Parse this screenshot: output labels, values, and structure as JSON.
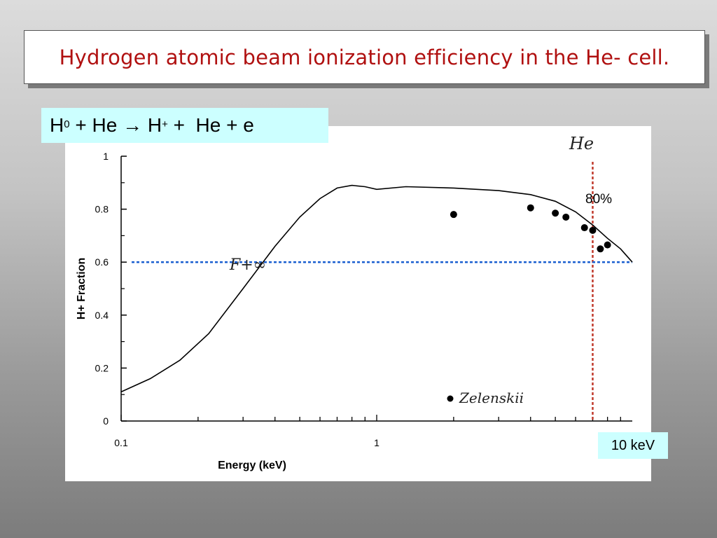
{
  "slide": {
    "title": "Hydrogen atomic beam ionization efficiency in the He- cell."
  },
  "reaction": {
    "h": "H",
    "h_sup": "0",
    "plus_he": " + He ",
    "arrow": "→",
    "h2": " H",
    "h2_sup": "+",
    "rest": " +  He + e"
  },
  "annotations": {
    "he_label": "He",
    "percent_label": "80%",
    "kev_label": "10 keV",
    "curve_label": "F+∞",
    "legend_label": "Zelenskii"
  },
  "colors": {
    "title": "#b01010",
    "vertical_line": "#c0392b",
    "horizontal_line": "#1a5fd0",
    "highlight_box": "#ccffff"
  },
  "chart_data": {
    "type": "line",
    "title": "",
    "xlabel": "Energy (keV)",
    "ylabel": "H+ Fraction",
    "xscale": "log",
    "xlim": [
      0.1,
      10
    ],
    "ylim": [
      0,
      1
    ],
    "x_ticks": [
      {
        "value": 0.1,
        "label": "0.1"
      },
      {
        "value": 1,
        "label": "1"
      }
    ],
    "y_ticks": [
      {
        "value": 0,
        "label": "0"
      },
      {
        "value": 0.2,
        "label": "0.2"
      },
      {
        "value": 0.4,
        "label": "0.4"
      },
      {
        "value": 0.6,
        "label": "0.6"
      },
      {
        "value": 0.8,
        "label": "0.8"
      },
      {
        "value": 1,
        "label": "1"
      }
    ],
    "grid": false,
    "legend": "bottom-center",
    "series": [
      {
        "kind": "line",
        "x": [
          0.1,
          0.13,
          0.17,
          0.22,
          0.3,
          0.4,
          0.5,
          0.6,
          0.7,
          0.8,
          0.9,
          1.0,
          1.3,
          2.0,
          3.0,
          4.0,
          5.0,
          6.0,
          7.0,
          8.0,
          9.0,
          10.0
        ],
        "y": [
          0.11,
          0.16,
          0.23,
          0.33,
          0.5,
          0.66,
          0.77,
          0.84,
          0.88,
          0.89,
          0.885,
          0.875,
          0.885,
          0.88,
          0.87,
          0.855,
          0.83,
          0.79,
          0.74,
          0.69,
          0.65,
          0.6
        ]
      },
      {
        "name": "Zelenskii",
        "kind": "scatter",
        "x": [
          2.0,
          4.0,
          5.0,
          5.5,
          6.5,
          7.0,
          7.5,
          8.0
        ],
        "y": [
          0.78,
          0.805,
          0.785,
          0.77,
          0.73,
          0.72,
          0.65,
          0.665
        ]
      }
    ],
    "reference_lines": [
      {
        "axis": "x",
        "value": 7.0,
        "style": "dotted",
        "color": "#c0392b"
      },
      {
        "axis": "y",
        "value": 0.6,
        "style": "dotted",
        "color": "#1a5fd0"
      }
    ]
  }
}
